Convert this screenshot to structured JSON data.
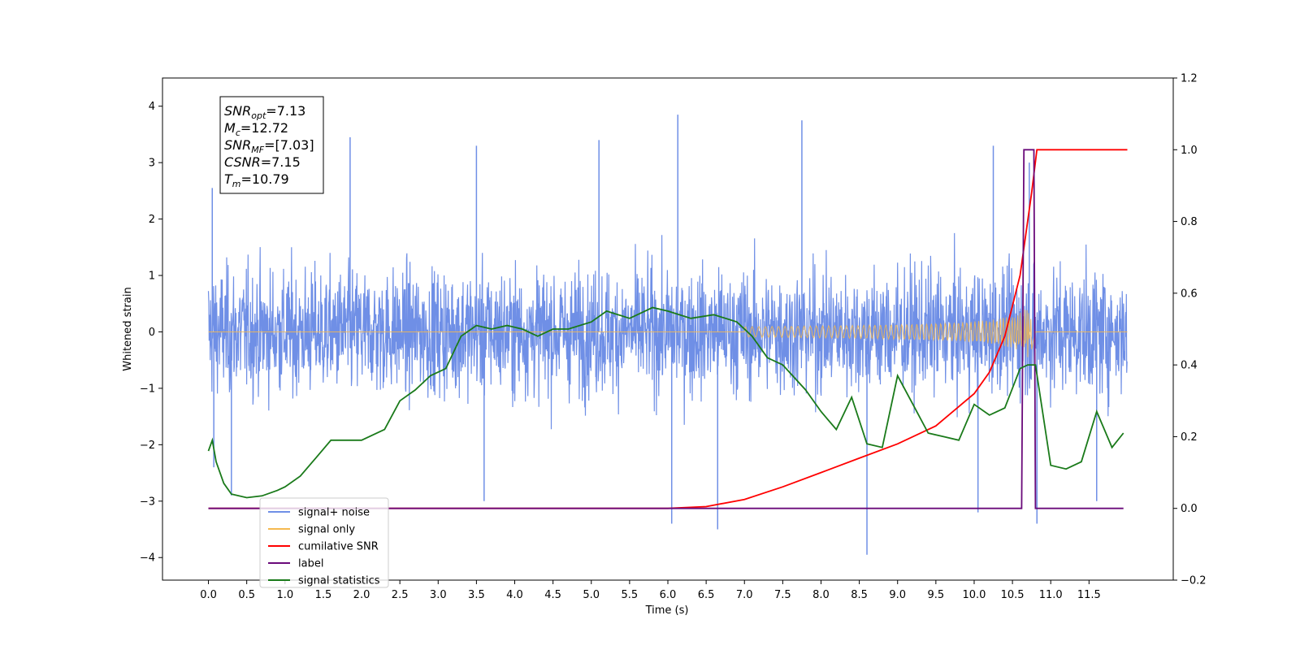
{
  "chart_data": {
    "type": "line",
    "xlabel": "Time (s)",
    "ylabel": "Whitened strain",
    "xlim": [
      -0.6,
      12.6
    ],
    "ylim": [
      -4.4,
      4.5
    ],
    "y2lim": [
      -0.2,
      1.2
    ],
    "grid": false,
    "legend_position": "lower-left",
    "x_ticks": [
      "0.0",
      "0.5",
      "1.0",
      "1.5",
      "2.0",
      "2.5",
      "3.0",
      "3.5",
      "4.0",
      "4.5",
      "5.0",
      "5.5",
      "6.0",
      "6.5",
      "7.0",
      "7.5",
      "8.0",
      "8.5",
      "9.0",
      "9.5",
      "10.0",
      "10.5",
      "11.0",
      "11.5"
    ],
    "y_ticks": [
      "4",
      "3",
      "2",
      "1",
      "0",
      "−1",
      "−2",
      "−3",
      "−4"
    ],
    "y_tick_values": [
      4,
      3,
      2,
      1,
      0,
      -1,
      -2,
      -3,
      -4
    ],
    "y2_ticks": [
      "1.2",
      "1.0",
      "0.8",
      "0.6",
      "0.4",
      "0.2",
      "0.0",
      "−0.2"
    ],
    "y2_tick_values": [
      1.2,
      1.0,
      0.8,
      0.6,
      0.4,
      0.2,
      0.0,
      -0.2
    ],
    "annotation": [
      {
        "base": "SNR",
        "sub": "opt",
        "value": "=7.13"
      },
      {
        "base": "M",
        "sub": "c",
        "value": "=12.72"
      },
      {
        "base": "SNR",
        "sub": "MF",
        "value": "=[7.03]"
      },
      {
        "base": "CSNR",
        "sub": "",
        "value": "=7.15"
      },
      {
        "base": "T",
        "sub": "m",
        "value": "=10.79"
      }
    ],
    "series": [
      {
        "name": "signal+ noise",
        "color": "#6f8fe6",
        "axis": "left",
        "noise_band": {
          "x_start": 0.0,
          "x_end": 12.0,
          "typical_amplitude": 1.4
        },
        "spikes": [
          {
            "x": 0.05,
            "y": 2.55
          },
          {
            "x": 0.07,
            "y": -2.4
          },
          {
            "x": 0.3,
            "y": -2.9
          },
          {
            "x": 1.85,
            "y": 3.45
          },
          {
            "x": 3.5,
            "y": 3.3
          },
          {
            "x": 3.6,
            "y": -3.0
          },
          {
            "x": 5.1,
            "y": 3.4
          },
          {
            "x": 6.05,
            "y": -3.4
          },
          {
            "x": 6.13,
            "y": 3.85
          },
          {
            "x": 6.65,
            "y": -3.5
          },
          {
            "x": 7.75,
            "y": 3.75
          },
          {
            "x": 8.6,
            "y": -3.95
          },
          {
            "x": 10.25,
            "y": 3.3
          },
          {
            "x": 10.72,
            "y": 3.0
          },
          {
            "x": 10.82,
            "y": -3.4
          },
          {
            "x": 11.6,
            "y": -3.0
          },
          {
            "x": 10.05,
            "y": -3.2
          }
        ]
      },
      {
        "name": "signal only",
        "color": "#f5b94f",
        "axis": "left",
        "chirp": {
          "x_start": 7.0,
          "x_peak": 10.75,
          "peak_amplitude": 0.6
        }
      },
      {
        "name": "cumilative SNR",
        "color": "#ff0000",
        "axis": "right",
        "x": [
          0.0,
          6.0,
          6.5,
          7.0,
          7.5,
          8.0,
          8.5,
          9.0,
          9.5,
          10.0,
          10.2,
          10.4,
          10.6,
          10.75,
          10.82,
          11.0,
          12.0
        ],
        "values": [
          0.0,
          0.0,
          0.005,
          0.025,
          0.06,
          0.1,
          0.14,
          0.18,
          0.23,
          0.32,
          0.38,
          0.48,
          0.65,
          0.88,
          1.0,
          1.0,
          1.0
        ]
      },
      {
        "name": "label",
        "color": "#6a0a7a",
        "axis": "right",
        "x": [
          0.0,
          10.62,
          10.65,
          10.78,
          10.8,
          11.95
        ],
        "values": [
          0.0,
          0.0,
          1.0,
          1.0,
          0.0,
          0.0
        ]
      },
      {
        "name": "signal statistics",
        "color": "#1a7a1a",
        "axis": "right",
        "x": [
          0.0,
          0.05,
          0.1,
          0.2,
          0.3,
          0.5,
          0.7,
          0.9,
          1.0,
          1.2,
          1.4,
          1.6,
          1.8,
          2.0,
          2.3,
          2.5,
          2.7,
          2.9,
          3.1,
          3.3,
          3.5,
          3.7,
          3.9,
          4.1,
          4.3,
          4.5,
          4.7,
          5.0,
          5.2,
          5.5,
          5.8,
          6.0,
          6.3,
          6.6,
          6.9,
          7.1,
          7.3,
          7.5,
          7.8,
          8.0,
          8.2,
          8.4,
          8.6,
          8.8,
          9.0,
          9.2,
          9.4,
          9.6,
          9.8,
          10.0,
          10.2,
          10.4,
          10.6,
          10.7,
          10.8,
          11.0,
          11.2,
          11.4,
          11.6,
          11.8,
          11.95
        ],
        "values": [
          0.16,
          0.19,
          0.13,
          0.07,
          0.04,
          0.03,
          0.035,
          0.05,
          0.06,
          0.09,
          0.14,
          0.19,
          0.19,
          0.19,
          0.22,
          0.3,
          0.33,
          0.37,
          0.39,
          0.48,
          0.51,
          0.5,
          0.51,
          0.5,
          0.48,
          0.5,
          0.5,
          0.52,
          0.55,
          0.53,
          0.56,
          0.55,
          0.53,
          0.54,
          0.52,
          0.48,
          0.42,
          0.4,
          0.33,
          0.27,
          0.22,
          0.31,
          0.18,
          0.17,
          0.37,
          0.29,
          0.21,
          0.2,
          0.19,
          0.29,
          0.26,
          0.28,
          0.39,
          0.4,
          0.4,
          0.12,
          0.11,
          0.13,
          0.27,
          0.17,
          0.21
        ]
      }
    ]
  }
}
